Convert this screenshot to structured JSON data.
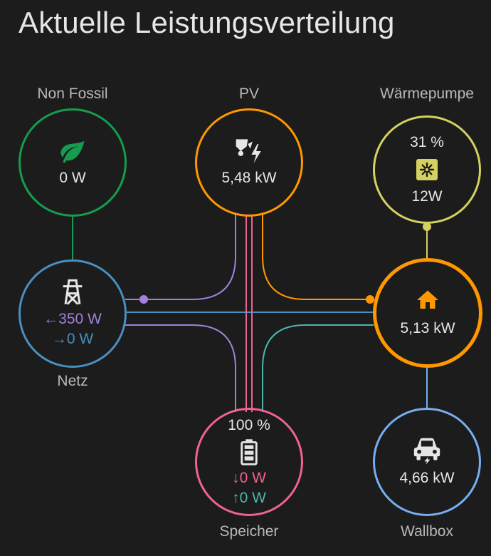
{
  "card": {
    "title": "Aktuelle Leistungsverteilung"
  },
  "colors": {
    "background": "#1c1c1c",
    "non_fossil": "#169c50",
    "solar": "#ff9800",
    "grid": "#488fc2",
    "grid_return": "#a280db",
    "home": "#ff9800",
    "battery_in": "#f06292",
    "battery_out": "#4db6ac",
    "heatpump": "#d4d160",
    "wallbox": "#77aef0"
  },
  "nodes": {
    "non_fossil": {
      "label": "Non Fossil",
      "value": "0 W",
      "icon": "leaf-icon"
    },
    "solar": {
      "label": "PV",
      "value": "5,48 kW",
      "icon": "solar-power-icon"
    },
    "heatpump": {
      "label": "Wärmepumpe",
      "percent": "31 %",
      "value": "12W",
      "icon": "heat-pump-icon"
    },
    "grid": {
      "label": "Netz",
      "consumption": "350 W",
      "return": "0 W",
      "consumption_arrow": "←",
      "return_arrow": "→",
      "icon": "transmission-tower-icon"
    },
    "home": {
      "value": "5,13 kW",
      "icon": "home-icon"
    },
    "battery": {
      "label": "Speicher",
      "soc": "100 %",
      "charge": "0 W",
      "discharge": "0 W",
      "charge_arrow": "↓",
      "discharge_arrow": "↑",
      "icon": "battery-icon"
    },
    "wallbox": {
      "label": "Wallbox",
      "value": "4,66 kW",
      "icon": "car-charging-icon"
    }
  }
}
